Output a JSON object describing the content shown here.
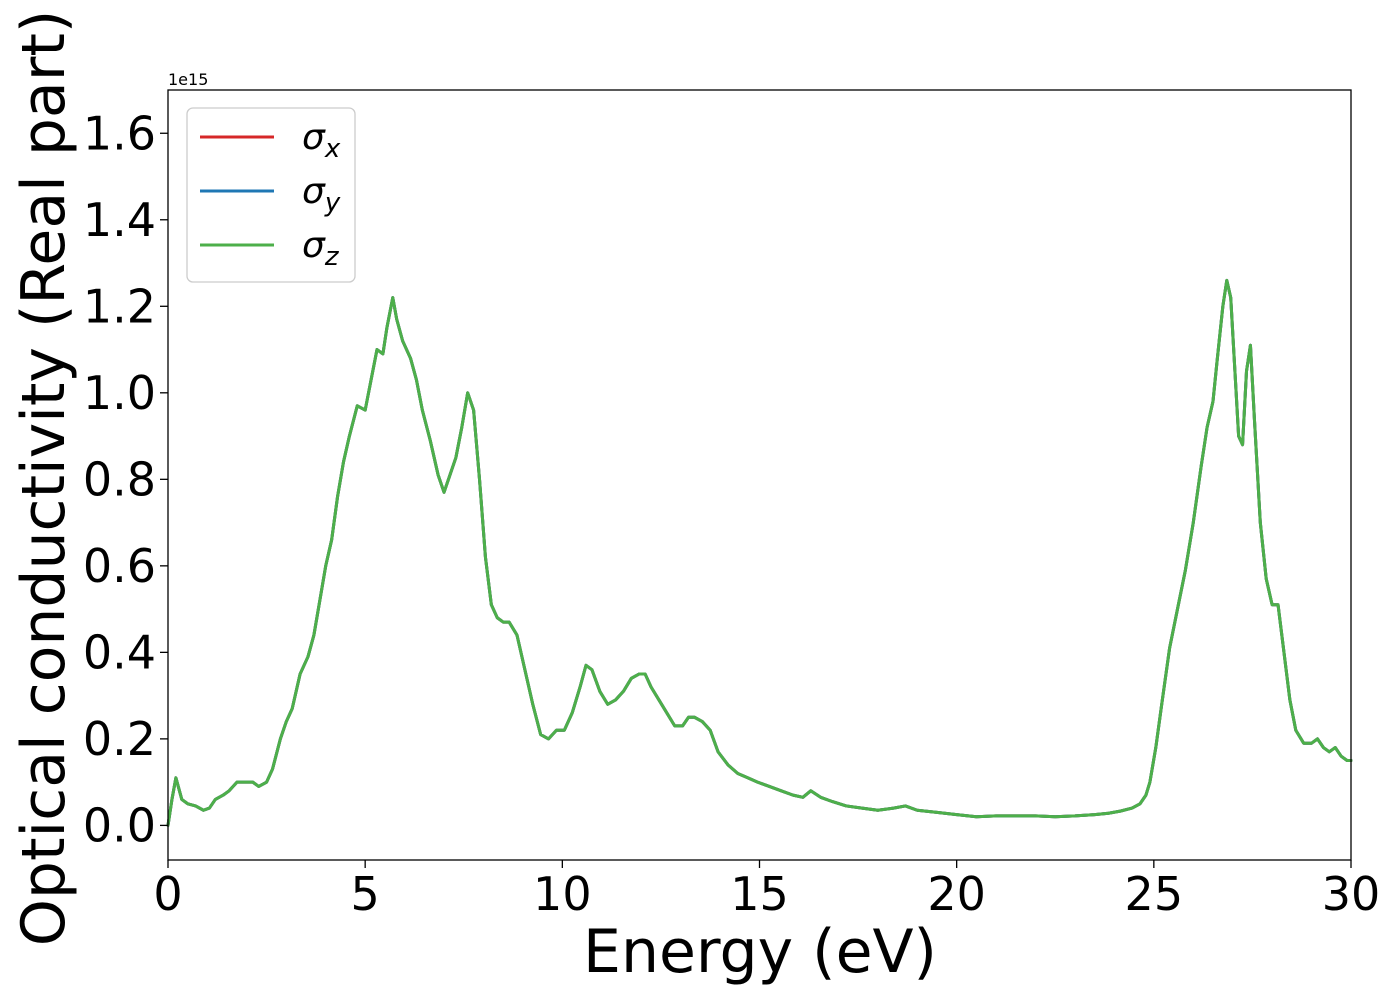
{
  "chart_data": {
    "type": "line",
    "title": "",
    "xlabel": "Energy (eV)",
    "ylabel": "Optical conductivity (Real part)",
    "y_offset_label": "1e15",
    "xlim": [
      0,
      30
    ],
    "ylim": [
      -0.08,
      1.7
    ],
    "x_ticks": [
      0,
      5,
      10,
      15,
      20,
      25,
      30
    ],
    "x_tick_labels": [
      "0",
      "5",
      "10",
      "15",
      "20",
      "25",
      "30"
    ],
    "y_ticks": [
      0.0,
      0.2,
      0.4,
      0.6,
      0.8,
      1.0,
      1.2,
      1.4,
      1.6
    ],
    "y_tick_labels": [
      "0.0",
      "0.2",
      "0.4",
      "0.6",
      "0.8",
      "1.0",
      "1.2",
      "1.4",
      "1.6"
    ],
    "grid": false,
    "legend": {
      "position": "top-left",
      "entries": [
        {
          "symbol": "σ",
          "subscript": "x",
          "color": "#d62728"
        },
        {
          "symbol": "σ",
          "subscript": "y",
          "color": "#1f77b4"
        },
        {
          "symbol": "σ",
          "subscript": "z",
          "color": "#4daf4a"
        }
      ]
    },
    "x": [
      0,
      0.1,
      0.2,
      0.35,
      0.5,
      0.7,
      0.9,
      1.05,
      1.2,
      1.4,
      1.55,
      1.75,
      1.95,
      2.15,
      2.3,
      2.5,
      2.65,
      2.85,
      3.0,
      3.15,
      3.35,
      3.55,
      3.7,
      3.85,
      4.0,
      4.15,
      4.3,
      4.45,
      4.6,
      4.8,
      5.0,
      5.15,
      5.3,
      5.45,
      5.55,
      5.7,
      5.8,
      5.95,
      6.15,
      6.3,
      6.45,
      6.65,
      6.85,
      7.0,
      7.15,
      7.3,
      7.45,
      7.6,
      7.75,
      7.9,
      8.05,
      8.2,
      8.35,
      8.5,
      8.65,
      8.85,
      9.05,
      9.25,
      9.45,
      9.65,
      9.85,
      10.05,
      10.25,
      10.45,
      10.6,
      10.75,
      10.95,
      11.15,
      11.35,
      11.55,
      11.75,
      11.95,
      12.1,
      12.25,
      12.45,
      12.65,
      12.85,
      13.05,
      13.2,
      13.35,
      13.55,
      13.75,
      13.95,
      14.2,
      14.45,
      14.7,
      14.95,
      15.25,
      15.55,
      15.85,
      16.1,
      16.3,
      16.55,
      16.85,
      17.2,
      17.6,
      18.0,
      18.4,
      18.7,
      19.0,
      19.5,
      20.0,
      20.5,
      21.0,
      21.5,
      22.0,
      22.5,
      23.0,
      23.5,
      23.85,
      24.15,
      24.45,
      24.65,
      24.8,
      24.9,
      25.05,
      25.2,
      25.4,
      25.6,
      25.8,
      26.0,
      26.2,
      26.35,
      26.5,
      26.6,
      26.75,
      26.85,
      26.95,
      27.05,
      27.15,
      27.25,
      27.35,
      27.45,
      27.55,
      27.7,
      27.85,
      28.0,
      28.15,
      28.3,
      28.45,
      28.6,
      28.8,
      29.0,
      29.15,
      29.3,
      29.45,
      29.6,
      29.75,
      29.9,
      30.0
    ],
    "series": [
      {
        "name": "σx",
        "color": "#d62728",
        "values": [
          0.0,
          0.06,
          0.11,
          0.06,
          0.05,
          0.045,
          0.035,
          0.04,
          0.06,
          0.07,
          0.08,
          0.1,
          0.1,
          0.1,
          0.09,
          0.1,
          0.13,
          0.2,
          0.24,
          0.27,
          0.35,
          0.39,
          0.44,
          0.52,
          0.6,
          0.66,
          0.76,
          0.84,
          0.9,
          0.97,
          0.96,
          1.03,
          1.1,
          1.09,
          1.15,
          1.22,
          1.17,
          1.12,
          1.08,
          1.03,
          0.96,
          0.89,
          0.81,
          0.77,
          0.81,
          0.85,
          0.92,
          1.0,
          0.96,
          0.8,
          0.62,
          0.51,
          0.48,
          0.47,
          0.47,
          0.44,
          0.36,
          0.28,
          0.21,
          0.2,
          0.22,
          0.22,
          0.26,
          0.32,
          0.37,
          0.36,
          0.31,
          0.28,
          0.29,
          0.31,
          0.34,
          0.35,
          0.35,
          0.32,
          0.29,
          0.26,
          0.23,
          0.23,
          0.25,
          0.25,
          0.24,
          0.22,
          0.17,
          0.14,
          0.12,
          0.11,
          0.1,
          0.09,
          0.08,
          0.07,
          0.065,
          0.08,
          0.065,
          0.055,
          0.045,
          0.04,
          0.035,
          0.04,
          0.045,
          0.035,
          0.03,
          0.025,
          0.02,
          0.022,
          0.022,
          0.022,
          0.02,
          0.022,
          0.025,
          0.028,
          0.033,
          0.04,
          0.05,
          0.07,
          0.1,
          0.18,
          0.28,
          0.41,
          0.5,
          0.59,
          0.7,
          0.83,
          0.92,
          0.98,
          1.07,
          1.2,
          1.26,
          1.22,
          1.06,
          0.9,
          0.88,
          1.05,
          1.11,
          0.94,
          0.7,
          0.57,
          0.51,
          0.51,
          0.4,
          0.29,
          0.22,
          0.19,
          0.19,
          0.2,
          0.18,
          0.17,
          0.18,
          0.16,
          0.15,
          0.15
        ]
      },
      {
        "name": "σy",
        "color": "#1f77b4",
        "values": [
          0.0,
          0.06,
          0.11,
          0.06,
          0.05,
          0.045,
          0.035,
          0.04,
          0.06,
          0.07,
          0.08,
          0.1,
          0.1,
          0.1,
          0.09,
          0.1,
          0.13,
          0.2,
          0.24,
          0.27,
          0.35,
          0.39,
          0.44,
          0.52,
          0.6,
          0.66,
          0.76,
          0.84,
          0.9,
          0.97,
          0.96,
          1.03,
          1.1,
          1.09,
          1.15,
          1.22,
          1.17,
          1.12,
          1.08,
          1.03,
          0.96,
          0.89,
          0.81,
          0.77,
          0.81,
          0.85,
          0.92,
          1.0,
          0.96,
          0.8,
          0.62,
          0.51,
          0.48,
          0.47,
          0.47,
          0.44,
          0.36,
          0.28,
          0.21,
          0.2,
          0.22,
          0.22,
          0.26,
          0.32,
          0.37,
          0.36,
          0.31,
          0.28,
          0.29,
          0.31,
          0.34,
          0.35,
          0.35,
          0.32,
          0.29,
          0.26,
          0.23,
          0.23,
          0.25,
          0.25,
          0.24,
          0.22,
          0.17,
          0.14,
          0.12,
          0.11,
          0.1,
          0.09,
          0.08,
          0.07,
          0.065,
          0.08,
          0.065,
          0.055,
          0.045,
          0.04,
          0.035,
          0.04,
          0.045,
          0.035,
          0.03,
          0.025,
          0.02,
          0.022,
          0.022,
          0.022,
          0.02,
          0.022,
          0.025,
          0.028,
          0.033,
          0.04,
          0.05,
          0.07,
          0.1,
          0.18,
          0.28,
          0.41,
          0.5,
          0.59,
          0.7,
          0.83,
          0.92,
          0.98,
          1.07,
          1.2,
          1.26,
          1.22,
          1.06,
          0.9,
          0.88,
          1.05,
          1.11,
          0.94,
          0.7,
          0.57,
          0.51,
          0.51,
          0.4,
          0.29,
          0.22,
          0.19,
          0.19,
          0.2,
          0.18,
          0.17,
          0.18,
          0.16,
          0.15,
          0.15
        ]
      },
      {
        "name": "σz",
        "color": "#4daf4a",
        "values": [
          0.0,
          0.06,
          0.11,
          0.06,
          0.05,
          0.045,
          0.035,
          0.04,
          0.06,
          0.07,
          0.08,
          0.1,
          0.1,
          0.1,
          0.09,
          0.1,
          0.13,
          0.2,
          0.24,
          0.27,
          0.35,
          0.39,
          0.44,
          0.52,
          0.6,
          0.66,
          0.76,
          0.84,
          0.9,
          0.97,
          0.96,
          1.03,
          1.1,
          1.09,
          1.15,
          1.22,
          1.17,
          1.12,
          1.08,
          1.03,
          0.96,
          0.89,
          0.81,
          0.77,
          0.81,
          0.85,
          0.92,
          1.0,
          0.96,
          0.8,
          0.62,
          0.51,
          0.48,
          0.47,
          0.47,
          0.44,
          0.36,
          0.28,
          0.21,
          0.2,
          0.22,
          0.22,
          0.26,
          0.32,
          0.37,
          0.36,
          0.31,
          0.28,
          0.29,
          0.31,
          0.34,
          0.35,
          0.35,
          0.32,
          0.29,
          0.26,
          0.23,
          0.23,
          0.25,
          0.25,
          0.24,
          0.22,
          0.17,
          0.14,
          0.12,
          0.11,
          0.1,
          0.09,
          0.08,
          0.07,
          0.065,
          0.08,
          0.065,
          0.055,
          0.045,
          0.04,
          0.035,
          0.04,
          0.045,
          0.035,
          0.03,
          0.025,
          0.02,
          0.022,
          0.022,
          0.022,
          0.02,
          0.022,
          0.025,
          0.028,
          0.033,
          0.04,
          0.05,
          0.07,
          0.1,
          0.18,
          0.28,
          0.41,
          0.5,
          0.59,
          0.7,
          0.83,
          0.92,
          0.98,
          1.07,
          1.2,
          1.26,
          1.22,
          1.06,
          0.9,
          0.88,
          1.05,
          1.11,
          0.94,
          0.7,
          0.57,
          0.51,
          0.51,
          0.4,
          0.29,
          0.22,
          0.19,
          0.19,
          0.2,
          0.18,
          0.17,
          0.18,
          0.16,
          0.15,
          0.15
        ]
      }
    ]
  }
}
